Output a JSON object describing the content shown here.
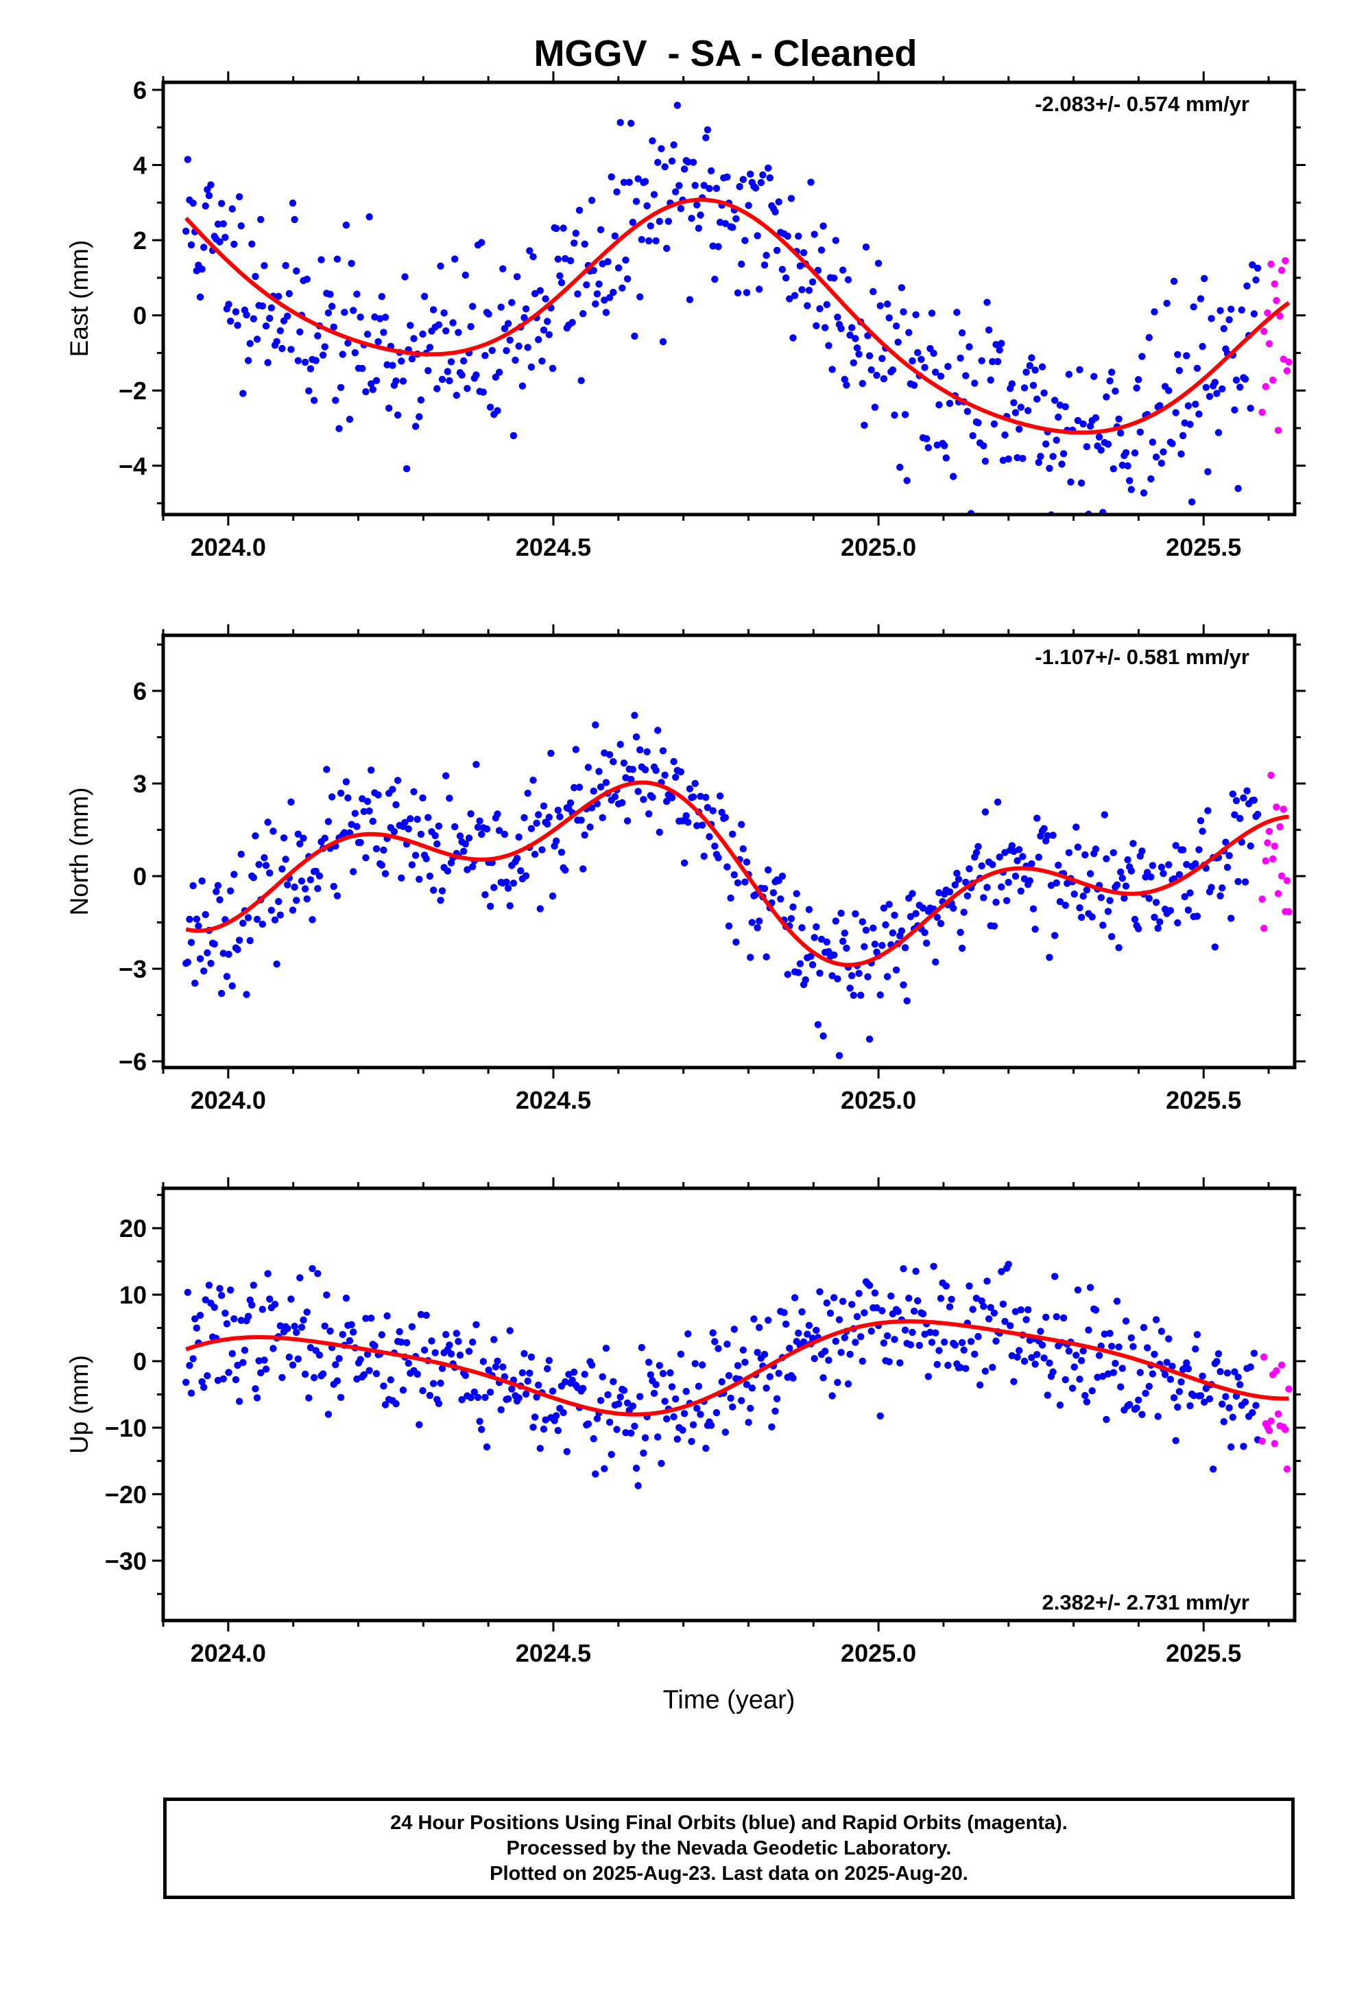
{
  "title": "MGGV  - SA - Cleaned",
  "colors": {
    "final_orbits": "#0000ff",
    "rapid_orbits": "#ff00ff",
    "model": "#ff0000",
    "frame": "#000000"
  },
  "footer": {
    "line1": "24 Hour Positions Using Final Orbits (blue) and Rapid Orbits (magenta).",
    "line2": "Processed by the Nevada Geodetic Laboratory.",
    "line3": "Plotted on 2025-Aug-23. Last data on 2025-Aug-20."
  },
  "chart_data": [
    {
      "type": "scatter",
      "ylabel": "East (mm)",
      "rate_label": "-2.083+/- 0.574 mm/yr",
      "xlim": [
        2023.9,
        2025.64
      ],
      "ylim": [
        -5.3,
        6.2
      ],
      "x_ticks": [
        "2024.0",
        "2024.5",
        "2025.0",
        "2025.5"
      ],
      "y_ticks": [
        6,
        4,
        2,
        0,
        -2,
        -4
      ],
      "y_tick_labels": [
        "6",
        "4",
        "2",
        "0",
        "−2",
        "−4"
      ],
      "model": {
        "offset": 0.1,
        "slope": -2.083,
        "annual_amp": 2.5,
        "annual_phase": 0.5,
        "semi_amp": 0.35,
        "semi_phase": 0.6
      },
      "noise": 1.25,
      "seed": 11,
      "final_orbits_range": [
        2023.935,
        2025.585
      ],
      "rapid_orbits_range": [
        2025.59,
        2025.632
      ]
    },
    {
      "type": "scatter",
      "ylabel": "North (mm)",
      "rate_label": "-1.107+/- 0.581 mm/yr",
      "xlim": [
        2023.9,
        2025.64
      ],
      "ylim": [
        -6.2,
        7.8
      ],
      "x_ticks": [
        "2024.0",
        "2024.5",
        "2025.0",
        "2025.5"
      ],
      "y_ticks": [
        6,
        3,
        0,
        -3,
        -6
      ],
      "y_tick_labels": [
        "6",
        "3",
        "0",
        "−3",
        "−6"
      ],
      "model": {
        "offset": 0.2,
        "slope": -1.107,
        "annual_amp": 1.8,
        "annual_phase": 0.28,
        "semi_amp": 1.4,
        "semi_phase": 0.05
      },
      "noise": 1.0,
      "seed": 23,
      "final_orbits_range": [
        2023.935,
        2025.585
      ],
      "rapid_orbits_range": [
        2025.59,
        2025.632
      ]
    },
    {
      "type": "scatter",
      "ylabel": "Up (mm)",
      "rate_label": "2.382+/- 2.731 mm/yr",
      "xlim": [
        2023.9,
        2025.64
      ],
      "ylim": [
        -39,
        26
      ],
      "x_ticks": [
        "2024.0",
        "2024.5",
        "2025.0",
        "2025.5"
      ],
      "y_ticks": [
        20,
        10,
        0,
        -10,
        -20,
        -30
      ],
      "y_tick_labels": [
        "20",
        "10",
        "0",
        "−10",
        "−20",
        "−30"
      ],
      "xlabel": "Time (year)",
      "model": {
        "offset": -0.5,
        "slope": 2.382,
        "annual_amp": 6.2,
        "annual_phase": 0.85,
        "semi_amp": 1.2,
        "semi_phase": 0.3
      },
      "noise": 4.5,
      "seed": 37,
      "final_orbits_range": [
        2023.935,
        2025.585
      ],
      "rapid_orbits_range": [
        2025.59,
        2025.632
      ]
    }
  ]
}
